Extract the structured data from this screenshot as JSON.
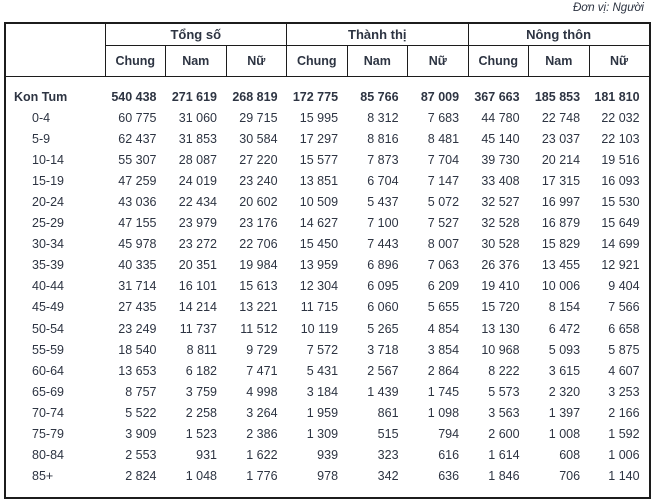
{
  "unit_label": "Đơn vị: Người",
  "table": {
    "col_groups": [
      "Tổng số",
      "Thành thị",
      "Nông thôn"
    ],
    "sub_headers": [
      "Chung",
      "Nam",
      "Nữ"
    ],
    "rows": [
      {
        "label": "Kon Tum",
        "bold": true,
        "values": [
          "540 438",
          "271 619",
          "268 819",
          "172 775",
          "85 766",
          "87 009",
          "367 663",
          "185 853",
          "181 810"
        ]
      },
      {
        "label": "0-4",
        "bold": false,
        "values": [
          "60 775",
          "31 060",
          "29 715",
          "15 995",
          "8 312",
          "7 683",
          "44 780",
          "22 748",
          "22 032"
        ]
      },
      {
        "label": "5-9",
        "bold": false,
        "values": [
          "62 437",
          "31 853",
          "30 584",
          "17 297",
          "8 816",
          "8 481",
          "45 140",
          "23 037",
          "22 103"
        ]
      },
      {
        "label": "10-14",
        "bold": false,
        "values": [
          "55 307",
          "28 087",
          "27 220",
          "15 577",
          "7 873",
          "7 704",
          "39 730",
          "20 214",
          "19 516"
        ]
      },
      {
        "label": "15-19",
        "bold": false,
        "values": [
          "47 259",
          "24 019",
          "23 240",
          "13 851",
          "6 704",
          "7 147",
          "33 408",
          "17 315",
          "16 093"
        ]
      },
      {
        "label": "20-24",
        "bold": false,
        "values": [
          "43 036",
          "22 434",
          "20 602",
          "10 509",
          "5 437",
          "5 072",
          "32 527",
          "16 997",
          "15 530"
        ]
      },
      {
        "label": "25-29",
        "bold": false,
        "values": [
          "47 155",
          "23 979",
          "23 176",
          "14 627",
          "7 100",
          "7 527",
          "32 528",
          "16 879",
          "15 649"
        ]
      },
      {
        "label": "30-34",
        "bold": false,
        "values": [
          "45 978",
          "23 272",
          "22 706",
          "15 450",
          "7 443",
          "8 007",
          "30 528",
          "15 829",
          "14 699"
        ]
      },
      {
        "label": "35-39",
        "bold": false,
        "values": [
          "40 335",
          "20 351",
          "19 984",
          "13 959",
          "6 896",
          "7 063",
          "26 376",
          "13 455",
          "12 921"
        ]
      },
      {
        "label": "40-44",
        "bold": false,
        "values": [
          "31 714",
          "16 101",
          "15 613",
          "12 304",
          "6 095",
          "6 209",
          "19 410",
          "10 006",
          "9 404"
        ]
      },
      {
        "label": "45-49",
        "bold": false,
        "values": [
          "27 435",
          "14 214",
          "13 221",
          "11 715",
          "6 060",
          "5 655",
          "15 720",
          "8 154",
          "7 566"
        ]
      },
      {
        "label": "50-54",
        "bold": false,
        "values": [
          "23 249",
          "11 737",
          "11 512",
          "10 119",
          "5 265",
          "4 854",
          "13 130",
          "6 472",
          "6 658"
        ]
      },
      {
        "label": "55-59",
        "bold": false,
        "values": [
          "18 540",
          "8 811",
          "9 729",
          "7 572",
          "3 718",
          "3 854",
          "10 968",
          "5 093",
          "5 875"
        ]
      },
      {
        "label": "60-64",
        "bold": false,
        "values": [
          "13 653",
          "6 182",
          "7 471",
          "5 431",
          "2 567",
          "2 864",
          "8 222",
          "3 615",
          "4 607"
        ]
      },
      {
        "label": "65-69",
        "bold": false,
        "values": [
          "8 757",
          "3 759",
          "4 998",
          "3 184",
          "1 439",
          "1 745",
          "5 573",
          "2 320",
          "3 253"
        ]
      },
      {
        "label": "70-74",
        "bold": false,
        "values": [
          "5 522",
          "2 258",
          "3 264",
          "1 959",
          "861",
          "1 098",
          "3 563",
          "1 397",
          "2 166"
        ]
      },
      {
        "label": "75-79",
        "bold": false,
        "values": [
          "3 909",
          "1 523",
          "2 386",
          "1 309",
          "515",
          "794",
          "2 600",
          "1 008",
          "1 592"
        ]
      },
      {
        "label": "80-84",
        "bold": false,
        "values": [
          "2 553",
          "931",
          "1 622",
          "939",
          "323",
          "616",
          "1 614",
          "608",
          "1 006"
        ]
      },
      {
        "label": "85+",
        "bold": false,
        "values": [
          "2 824",
          "1 048",
          "1 776",
          "978",
          "342",
          "636",
          "1 846",
          "706",
          "1 140"
        ]
      }
    ]
  }
}
